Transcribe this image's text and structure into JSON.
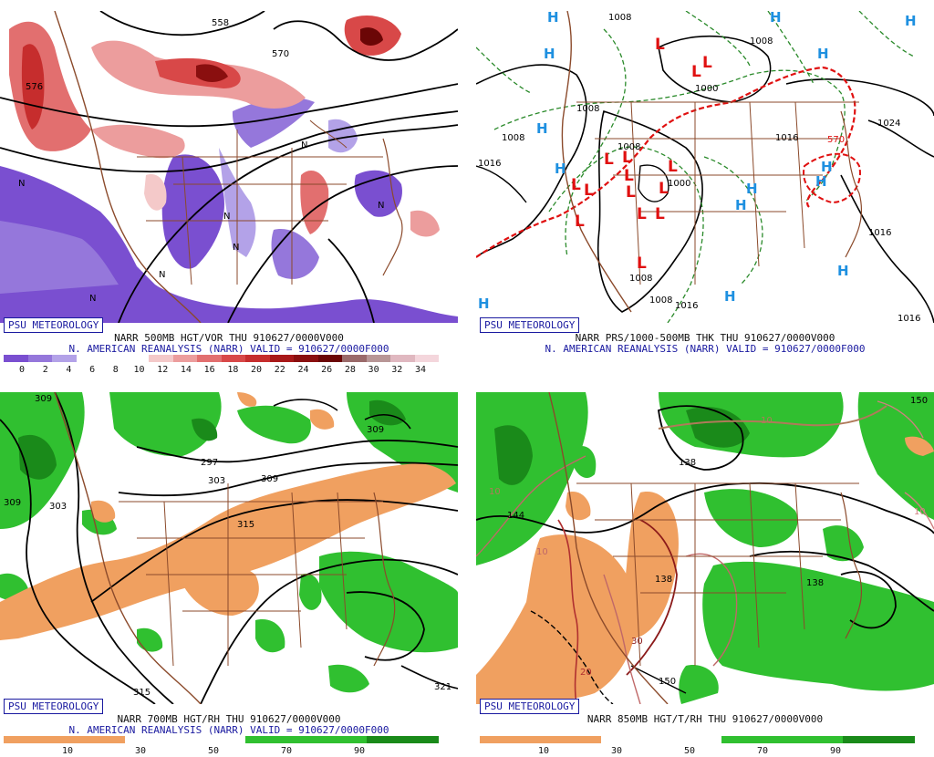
{
  "brand": "PSU METEOROLOGY",
  "panels": [
    {
      "title": "NARR 500MB HGT/VOR THU 910627/0000V000",
      "subtitle": "N. AMERICAN REANALYSIS (NARR) VALID = 910627/0000F000",
      "colorbar": {
        "colors": [
          "#7a4fd0",
          "#9577db",
          "#b3a2e8",
          "#ffffff",
          "#ffffff",
          "#ffffff",
          "#f4c9c9",
          "#ec9d9d",
          "#e26f6f",
          "#d84848",
          "#c62d2d",
          "#a81818",
          "#8a0f0f",
          "#6b0606",
          "#9a6a6a",
          "#b89696",
          "#e0b8c0",
          "#f4d6dc"
        ],
        "ticks": [
          "0",
          "2",
          "4",
          "6",
          "8",
          "10",
          "12",
          "14",
          "16",
          "18",
          "20",
          "22",
          "24",
          "26",
          "28",
          "30",
          "32",
          "34"
        ]
      },
      "contour_labels": [
        "558",
        "570",
        "576",
        "N",
        "N",
        "N",
        "N",
        "N",
        "N",
        "N"
      ]
    },
    {
      "title": "NARR PRS/1000-500MB THK THU 910627/0000V000",
      "subtitle": "N. AMERICAN REANALYSIS (NARR) VALID = 910627/0000F000",
      "pressure_labels": [
        "1008",
        "1008",
        "1008",
        "1008",
        "1016",
        "1016",
        "1024",
        "1016",
        "1000",
        "1008",
        "1008",
        "1016",
        "1016",
        "1000",
        "1008"
      ],
      "thickness_label": "570",
      "highs": [
        "H",
        "H",
        "H",
        "H",
        "H",
        "H",
        "H",
        "H",
        "H",
        "H",
        "H",
        "H",
        "H",
        "H"
      ],
      "lows": [
        "L",
        "L",
        "L",
        "L",
        "L",
        "L",
        "L",
        "L",
        "L",
        "L",
        "L",
        "L",
        "L",
        "L",
        "L"
      ]
    },
    {
      "title": "NARR 700MB HGT/RH THU 910627/0000V000",
      "subtitle": "N. AMERICAN REANALYSIS (NARR) VALID = 910627/0000F000",
      "colorbar": {
        "colors": [
          "#f0a060",
          "#f0a060",
          "#f0a060",
          "#f0a060",
          "#f0a060",
          "#ffffff",
          "#ffffff",
          "#ffffff",
          "#ffffff",
          "#ffffff",
          "#30c030",
          "#30c030",
          "#30c030",
          "#30c030",
          "#30c030",
          "#1a8a1a",
          "#1a8a1a",
          "#1a8a1a"
        ],
        "ticks": [
          "10",
          "30",
          "50",
          "70",
          "90"
        ]
      },
      "contour_labels": [
        "309",
        "309",
        "303",
        "297",
        "303",
        "309",
        "315",
        "315",
        "309",
        "321"
      ]
    },
    {
      "title": "NARR 850MB HGT/T/RH THU 910627/0000V000",
      "subtitle": "",
      "colorbar": {
        "colors": [
          "#f0a060",
          "#f0a060",
          "#f0a060",
          "#f0a060",
          "#f0a060",
          "#ffffff",
          "#ffffff",
          "#ffffff",
          "#ffffff",
          "#ffffff",
          "#30c030",
          "#30c030",
          "#30c030",
          "#30c030",
          "#30c030",
          "#1a8a1a",
          "#1a8a1a",
          "#1a8a1a"
        ],
        "ticks": [
          "10",
          "30",
          "50",
          "70",
          "90"
        ]
      },
      "contour_labels": [
        "150",
        "10",
        "138",
        "10",
        "144",
        "10",
        "138",
        "138",
        "30",
        "20",
        "150",
        "10"
      ]
    }
  ]
}
